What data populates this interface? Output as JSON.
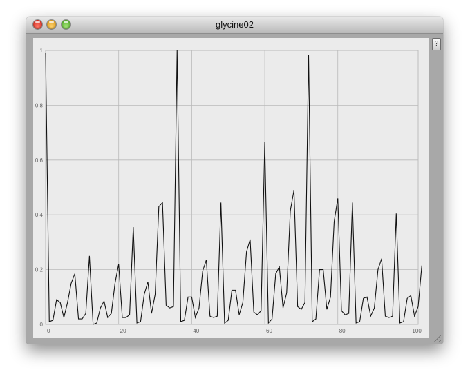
{
  "window": {
    "title": "glycine02"
  },
  "help_button": {
    "label": "?"
  },
  "chart_data": {
    "type": "line",
    "title": "",
    "xlabel": "",
    "ylabel": "",
    "xlim": [
      0,
      102
    ],
    "ylim": [
      0,
      1
    ],
    "grid": true,
    "xticks": [
      "0",
      "20",
      "40",
      "60",
      "80",
      "100"
    ],
    "yticks": [
      "0",
      "0.2",
      "0.4",
      "0.6",
      "0.8",
      "1"
    ],
    "series": [
      {
        "values": [
          0.99,
          0.01,
          0.015,
          0.09,
          0.08,
          0.025,
          0.08,
          0.15,
          0.185,
          0.02,
          0.02,
          0.04,
          0.25,
          0.0,
          0.005,
          0.06,
          0.085,
          0.025,
          0.04,
          0.15,
          0.22,
          0.025,
          0.025,
          0.035,
          0.355,
          0.005,
          0.01,
          0.11,
          0.155,
          0.04,
          0.11,
          0.43,
          0.445,
          0.07,
          0.06,
          0.065,
          1.0,
          0.01,
          0.015,
          0.1,
          0.1,
          0.025,
          0.06,
          0.195,
          0.235,
          0.03,
          0.025,
          0.03,
          0.445,
          0.005,
          0.015,
          0.125,
          0.125,
          0.035,
          0.08,
          0.265,
          0.31,
          0.045,
          0.035,
          0.05,
          0.665,
          0.005,
          0.02,
          0.185,
          0.21,
          0.06,
          0.115,
          0.415,
          0.49,
          0.065,
          0.055,
          0.08,
          0.985,
          0.01,
          0.02,
          0.2,
          0.2,
          0.055,
          0.1,
          0.375,
          0.46,
          0.05,
          0.035,
          0.04,
          0.445,
          0.005,
          0.01,
          0.095,
          0.1,
          0.03,
          0.06,
          0.2,
          0.24,
          0.03,
          0.025,
          0.03,
          0.405,
          0.005,
          0.01,
          0.095,
          0.105,
          0.03,
          0.065,
          0.215
        ]
      }
    ]
  }
}
